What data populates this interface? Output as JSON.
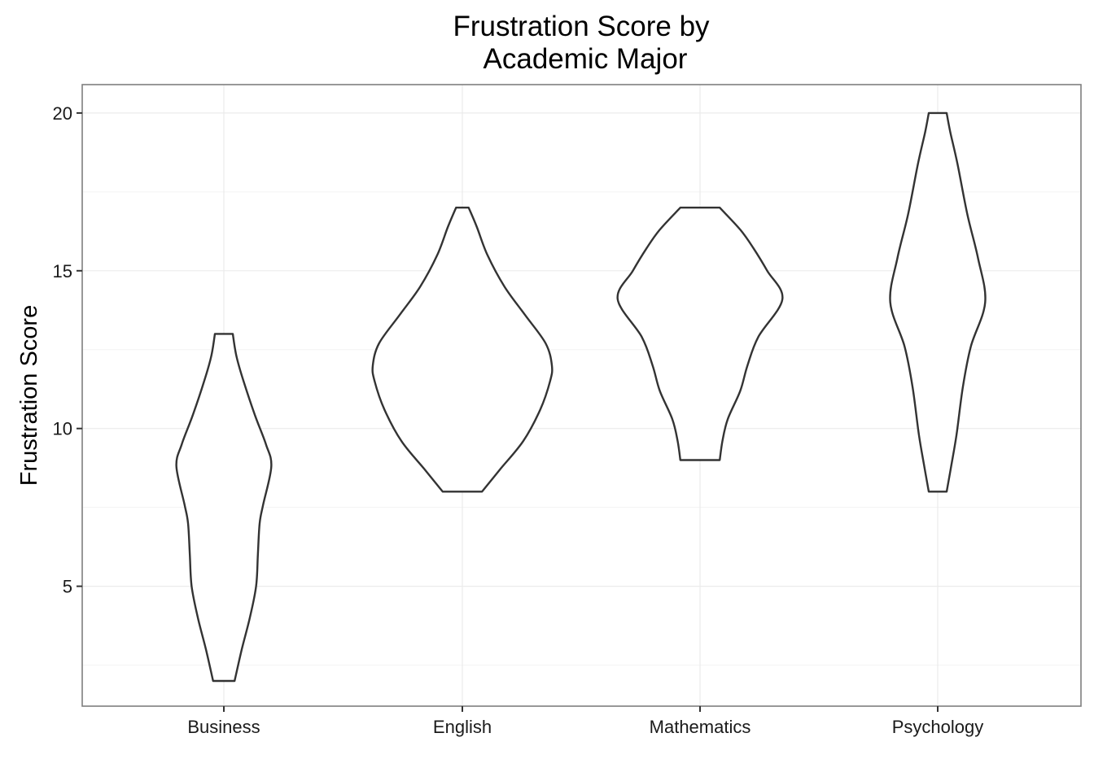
{
  "chart_data": {
    "type": "violin",
    "title": [
      "Frustration Score by",
      "Academic Major"
    ],
    "xlabel": "",
    "ylabel": "Frustration Score",
    "ylim": [
      1.2,
      20.9
    ],
    "yticks": [
      5,
      10,
      15,
      20
    ],
    "grid": true,
    "categories": [
      "Business",
      "English",
      "Mathematics",
      "Psychology"
    ],
    "violins": [
      {
        "name": "Business",
        "min": 2,
        "max": 13,
        "profile": [
          [
            2,
            0.12
          ],
          [
            3,
            0.2
          ],
          [
            4,
            0.29
          ],
          [
            5,
            0.36
          ],
          [
            6,
            0.38
          ],
          [
            7,
            0.4
          ],
          [
            7.6,
            0.44
          ],
          [
            8.8,
            0.53
          ],
          [
            9.5,
            0.47
          ],
          [
            10.4,
            0.35
          ],
          [
            11.5,
            0.22
          ],
          [
            12.3,
            0.14
          ],
          [
            13,
            0.1
          ]
        ]
      },
      {
        "name": "English",
        "min": 8,
        "max": 17,
        "profile": [
          [
            8,
            0.22
          ],
          [
            8.7,
            0.42
          ],
          [
            9.6,
            0.68
          ],
          [
            10.6,
            0.87
          ],
          [
            11.5,
            0.98
          ],
          [
            12,
            1.0
          ],
          [
            12.7,
            0.93
          ],
          [
            13.6,
            0.7
          ],
          [
            14.5,
            0.47
          ],
          [
            15.5,
            0.28
          ],
          [
            16.4,
            0.16
          ],
          [
            17,
            0.07
          ]
        ]
      },
      {
        "name": "Mathematics",
        "min": 9,
        "max": 17,
        "profile": [
          [
            9,
            0.22
          ],
          [
            9.6,
            0.25
          ],
          [
            10.3,
            0.31
          ],
          [
            11.2,
            0.45
          ],
          [
            12,
            0.53
          ],
          [
            12.9,
            0.65
          ],
          [
            14.1,
            0.92
          ],
          [
            15,
            0.75
          ],
          [
            15.7,
            0.6
          ],
          [
            16.3,
            0.45
          ],
          [
            17,
            0.22
          ]
        ]
      },
      {
        "name": "Psychology",
        "min": 8,
        "max": 20,
        "profile": [
          [
            8,
            0.1
          ],
          [
            8.8,
            0.15
          ],
          [
            9.8,
            0.21
          ],
          [
            11.3,
            0.28
          ],
          [
            12.6,
            0.37
          ],
          [
            14,
            0.53
          ],
          [
            15.4,
            0.45
          ],
          [
            16.8,
            0.33
          ],
          [
            18.4,
            0.22
          ],
          [
            19.4,
            0.14
          ],
          [
            20,
            0.1
          ]
        ]
      }
    ]
  }
}
